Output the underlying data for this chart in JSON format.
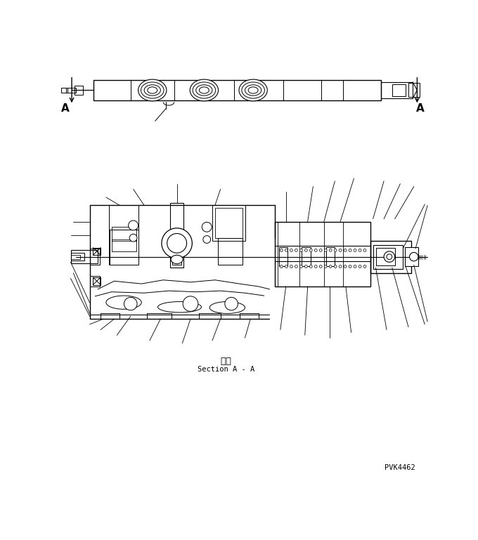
{
  "bg_color": "#ffffff",
  "line_color": "#000000",
  "fig_width": 6.8,
  "fig_height": 7.69,
  "dpi": 100,
  "label_A_left": "A",
  "label_A_right": "A",
  "section_label_jp": "断面",
  "section_label_en": "Section A - A",
  "part_number": "PVK4462"
}
